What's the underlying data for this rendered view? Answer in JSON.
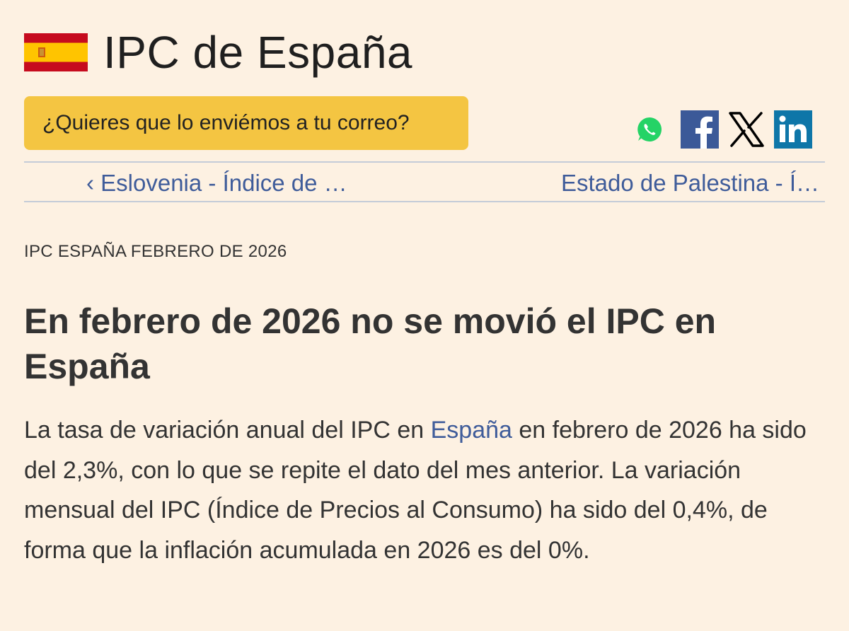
{
  "header": {
    "title": "IPC de España",
    "flag_icon": "spain-flag-icon"
  },
  "email_cta": {
    "label": "¿Quieres que lo enviémos a tu correo?",
    "color": "#f4c542"
  },
  "share": [
    {
      "icon": "whatsapp-icon",
      "color": "#25d366"
    },
    {
      "icon": "facebook-icon",
      "color": "#3b5998"
    },
    {
      "icon": "x-icon",
      "color": "#000000"
    },
    {
      "icon": "linkedin-icon",
      "color": "#0e76a8"
    }
  ],
  "nav": {
    "prev_label": "‹ Eslovenia - Índice de …",
    "next_label": "Estado de Palestina - Í…"
  },
  "article": {
    "kicker": "IPC ESPAÑA FEBRERO DE 2026",
    "headline": "En febrero de 2026 no se movió el IPC en España",
    "body_before_link": "La tasa de variación anual del IPC en ",
    "body_link": "España",
    "body_after_link": " en febrero de 2026 ha sido del 2,3%, con lo que se repite el dato del mes anterior. La variación mensual del IPC (Índice de Precios al Consumo) ha sido del 0,4%, de forma que la inflación acumulada en 2026 es del 0%."
  },
  "colors": {
    "background": "#fdf1e2",
    "link": "#3f5c9a",
    "text": "#333333"
  }
}
